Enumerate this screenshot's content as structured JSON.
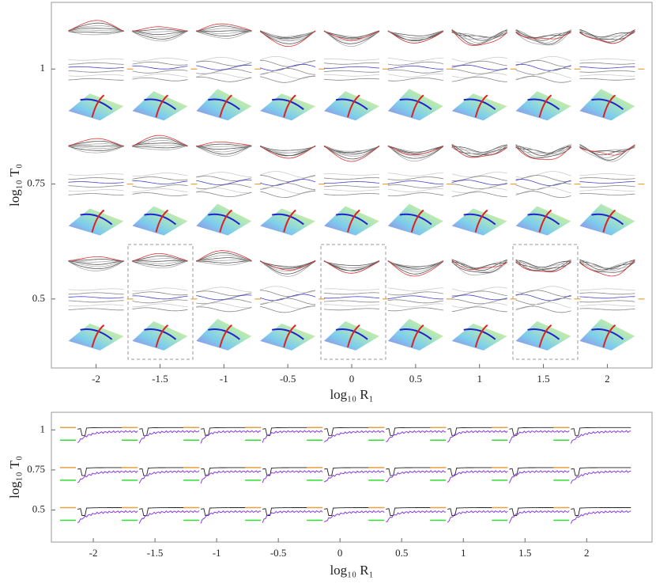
{
  "chart_data": [
    {
      "type": "glyph",
      "xlabel": "log₁₀ R₁",
      "ylabel": "log₁₀ T₀",
      "xlim": [
        -2.35,
        2.35
      ],
      "ylim": [
        0.35,
        1.145
      ],
      "xticks": [
        -2,
        -1.5,
        -1,
        -0.5,
        0,
        0.5,
        1,
        1.5,
        2
      ],
      "yticks": [
        0.5,
        0.75,
        1
      ]
    },
    {
      "type": "trace",
      "xlabel": "log₁₀ R₁",
      "ylabel": "log₁₀ T₀",
      "xlim": [
        -2.34,
        2.53
      ],
      "ylim": [
        0.3,
        1.11
      ],
      "xticks": [
        -2,
        -1.5,
        -1,
        -0.5,
        0,
        0.5,
        1,
        1.5,
        2
      ],
      "yticks": [
        0.5,
        0.75,
        1
      ]
    }
  ]
}
